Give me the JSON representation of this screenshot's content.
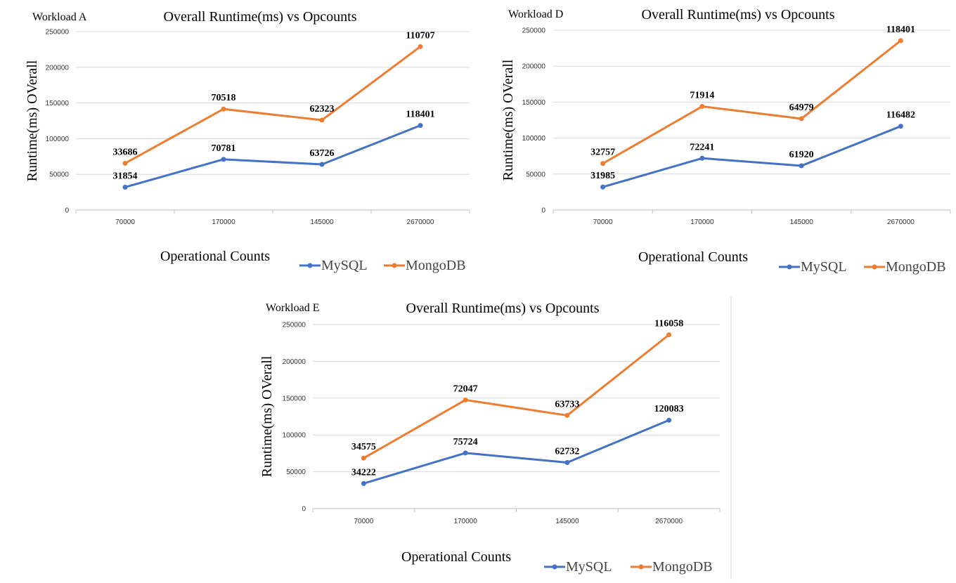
{
  "colors": {
    "mysql": "#4472C4",
    "mongodb": "#ED7D31",
    "grid": "#d9d9d9",
    "axis": "#bfbfbf"
  },
  "chart_data": [
    {
      "type": "line",
      "workload_label": "Workload A",
      "title": "Overall Runtime(ms) vs Opcounts",
      "xlabel": "Operational Counts",
      "ylabel": "Runtime(ms) OVerall",
      "categories": [
        "70000",
        "170000",
        "145000",
        "2670000"
      ],
      "yticks": [
        "0",
        "50000",
        "100000",
        "150000",
        "200000",
        "250000"
      ],
      "ylim": [
        0,
        250000
      ],
      "grid": true,
      "legend_position": "bottom-right",
      "series": [
        {
          "name": "MySQL",
          "color_key": "mysql",
          "values": [
            32000,
            71000,
            64000,
            118500
          ],
          "labels": [
            "31854",
            "70781",
            "63726",
            "118401"
          ]
        },
        {
          "name": "MongoDB",
          "color_key": "mongodb",
          "values": [
            65500,
            141500,
            126000,
            229000
          ],
          "labels": [
            "33686",
            "70518",
            "62323",
            "110707"
          ]
        }
      ]
    },
    {
      "type": "line",
      "workload_label": "Workload D",
      "title": "Overall Runtime(ms) vs Opcounts",
      "xlabel": "Operational Counts",
      "ylabel": "Runtime(ms) OVerall",
      "categories": [
        "70000",
        "170000",
        "145000",
        "2670000"
      ],
      "yticks": [
        "0",
        "50000",
        "100000",
        "150000",
        "200000",
        "250000"
      ],
      "ylim": [
        0,
        250000
      ],
      "grid": true,
      "legend_position": "bottom-right",
      "series": [
        {
          "name": "MySQL",
          "color_key": "mysql",
          "values": [
            32000,
            72000,
            61500,
            116500
          ],
          "labels": [
            "31985",
            "72241",
            "61920",
            "116482"
          ]
        },
        {
          "name": "MongoDB",
          "color_key": "mongodb",
          "values": [
            64700,
            144000,
            127000,
            235500
          ],
          "labels": [
            "32757",
            "71914",
            "64979",
            "118401"
          ]
        }
      ]
    },
    {
      "type": "line",
      "workload_label": "Workload E",
      "title": "Overall Runtime(ms) vs Opcounts",
      "xlabel": "Operational Counts",
      "ylabel": "Runtime(ms) OVerall",
      "categories": [
        "70000",
        "170000",
        "145000",
        "2670000"
      ],
      "yticks": [
        "0",
        "50000",
        "100000",
        "150000",
        "200000",
        "250000"
      ],
      "ylim": [
        0,
        250000
      ],
      "grid": true,
      "legend_position": "bottom-right",
      "series": [
        {
          "name": "MySQL",
          "color_key": "mysql",
          "values": [
            34000,
            75500,
            62500,
            120000
          ],
          "labels": [
            "34222",
            "75724",
            "62732",
            "120083"
          ]
        },
        {
          "name": "MongoDB",
          "color_key": "mongodb",
          "values": [
            68500,
            147500,
            126500,
            236000
          ],
          "labels": [
            "34575",
            "72047",
            "63733",
            "116058"
          ]
        }
      ]
    }
  ]
}
